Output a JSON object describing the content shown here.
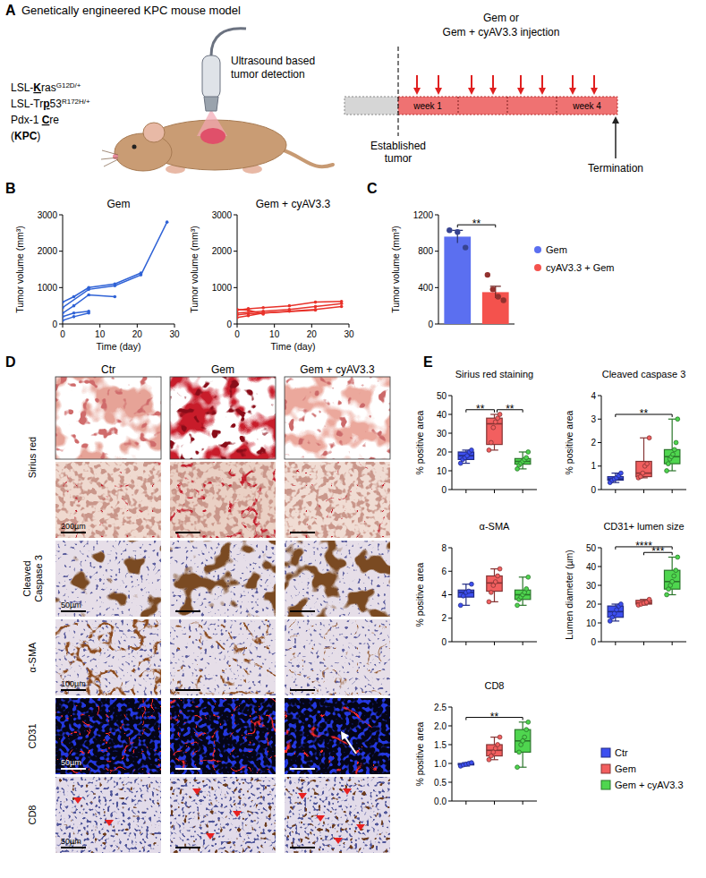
{
  "panel_letters": [
    "A",
    "B",
    "C",
    "D",
    "E"
  ],
  "panel_a": {
    "title": "Genetically engineered KPC mouse model",
    "genotype": [
      [
        {
          "t": "LSL-"
        },
        {
          "t": "K",
          "u": true
        },
        {
          "t": "ras"
        },
        {
          "t": "G12D/+",
          "sup": true
        }
      ],
      [
        {
          "t": "LSL-Tr"
        },
        {
          "t": "p",
          "u": true
        },
        {
          "t": "53"
        },
        {
          "t": "R172H/+",
          "sup": true
        }
      ],
      [
        {
          "t": "Pdx-1 "
        },
        {
          "t": "C",
          "u": true
        },
        {
          "t": "re"
        }
      ],
      [
        {
          "t": "("
        },
        {
          "t": "KPC",
          "b": true
        },
        {
          "t": ")"
        }
      ]
    ],
    "probe_label": [
      "Ultrasound based",
      "tumor detection"
    ],
    "treatment": [
      "Gem or",
      "Gem + cyAV3.3 injection"
    ],
    "weeks": [
      "week 1",
      "week 4"
    ],
    "start": [
      "Established",
      "tumor"
    ],
    "end": "Termination"
  },
  "panel_d": {
    "columns": [
      "Ctr",
      "Gem",
      "Gem + cyAV3.3"
    ],
    "rows": [
      {
        "label": "Sirius red",
        "scale": "200µm",
        "overview": true
      },
      {
        "label": "Cleaved Caspase 3",
        "scale": "50µm"
      },
      {
        "label": "α-SMA",
        "scale": "100µm"
      },
      {
        "label": "CD31",
        "scale": "50µm"
      },
      {
        "label": "CD8",
        "scale": "50µm"
      }
    ]
  },
  "legend_e": {
    "names": [
      "Ctr",
      "Gem",
      "Gem + cyAV3.3"
    ],
    "colors": [
      "#3d4ff0",
      "#f25f5f",
      "#4fd64f"
    ]
  },
  "chart_data": [
    {
      "type": "line",
      "title": "Gem",
      "x_label": "Time (day)",
      "y_label": "Tumor volume (mm³)",
      "color": "#2f62d6",
      "xlim": [
        0,
        30
      ],
      "xticks": [
        0,
        10,
        20,
        30
      ],
      "ylim": [
        0,
        3000
      ],
      "yticks": [
        0,
        1000,
        2000,
        3000
      ],
      "series": [
        {
          "x": [
            0,
            7,
            14,
            21,
            28
          ],
          "values": [
            450,
            950,
            1050,
            1350,
            2800
          ]
        },
        {
          "x": [
            0,
            3,
            7,
            14,
            21
          ],
          "values": [
            600,
            750,
            1000,
            1100,
            1400
          ]
        },
        {
          "x": [
            0,
            3,
            7,
            14
          ],
          "values": [
            300,
            500,
            800,
            750
          ]
        },
        {
          "x": [
            0,
            3,
            7
          ],
          "values": [
            200,
            300,
            350
          ]
        },
        {
          "x": [
            0,
            3,
            7
          ],
          "values": [
            100,
            200,
            300
          ]
        }
      ]
    },
    {
      "type": "line",
      "title": "Gem + cyAV3.3",
      "x_label": "Time (day)",
      "y_label": "Tumor volume (mm³)",
      "color": "#e8322a",
      "xlim": [
        0,
        30
      ],
      "xticks": [
        0,
        10,
        20,
        30
      ],
      "ylim": [
        0,
        3000
      ],
      "yticks": [
        0,
        1000,
        2000,
        3000
      ],
      "series": [
        {
          "x": [
            0,
            3,
            7,
            14,
            21,
            28
          ],
          "values": [
            380,
            420,
            450,
            500,
            600,
            620
          ]
        },
        {
          "x": [
            0,
            7,
            14,
            21,
            28
          ],
          "values": [
            300,
            350,
            400,
            480,
            560
          ]
        },
        {
          "x": [
            0,
            3,
            7,
            14,
            21,
            28
          ],
          "values": [
            250,
            280,
            300,
            350,
            400,
            480
          ]
        },
        {
          "x": [
            0,
            3,
            7,
            21
          ],
          "values": [
            180,
            230,
            300,
            380
          ]
        },
        {
          "x": [
            0,
            3,
            7
          ],
          "values": [
            400,
            380,
            270
          ]
        }
      ]
    },
    {
      "type": "bar",
      "y_label": "Tumor volume (mm³)",
      "categories": [
        null,
        null
      ],
      "values": [
        960,
        350
      ],
      "errors": [
        70,
        65
      ],
      "colors": [
        "#5b6ff0",
        "#f4524d"
      ],
      "legend_labels": [
        "Gem",
        "cyAV3.3 + Gem"
      ],
      "legend": "right",
      "tick_labels": "y",
      "points": [
        [
          1030,
          1010,
          840
        ],
        [
          540,
          380,
          300,
          260
        ]
      ],
      "ylim": [
        0,
        1200
      ],
      "yticks": [
        0,
        400,
        800,
        1200
      ],
      "annotations": [
        {
          "from": 0,
          "to": 1,
          "text": "**"
        }
      ]
    },
    {
      "type": "box",
      "title": "Sirius red staining",
      "y_label": "% positive area",
      "categories": [
        null,
        null,
        null
      ],
      "tick_labels": "y",
      "colors": [
        "#3d4ff0",
        "#f25f5f",
        "#4fd64f"
      ],
      "ylim": [
        0,
        50
      ],
      "yticks": [
        0,
        10,
        20,
        30,
        40,
        50
      ],
      "boxes": [
        {
          "min": 14,
          "q1": 16,
          "median": 18,
          "q3": 20,
          "max": 21
        },
        {
          "min": 21,
          "q1": 24,
          "median": 35,
          "q3": 38,
          "max": 40
        },
        {
          "min": 11,
          "q1": 13.5,
          "median": 15,
          "q3": 16.5,
          "max": 20
        }
      ],
      "points": [
        [
          14,
          16,
          17,
          18,
          20,
          21
        ],
        [
          21,
          25,
          33,
          36,
          38,
          40
        ],
        [
          11,
          13,
          14,
          15,
          16,
          17,
          20
        ]
      ],
      "annotations": [
        {
          "from": 0,
          "to": 1,
          "text": "**"
        },
        {
          "from": 1,
          "to": 2,
          "text": "**"
        }
      ]
    },
    {
      "type": "box",
      "title": "Cleaved caspase 3",
      "y_label": "% positive area",
      "categories": [
        null,
        null,
        null
      ],
      "tick_labels": "y",
      "colors": [
        "#3d4ff0",
        "#f25f5f",
        "#4fd64f"
      ],
      "ylim": [
        0,
        4
      ],
      "yticks": [
        0,
        1,
        2,
        3,
        4
      ],
      "boxes": [
        {
          "min": 0.3,
          "q1": 0.4,
          "median": 0.45,
          "q3": 0.55,
          "max": 0.7
        },
        {
          "min": 0.5,
          "q1": 0.55,
          "median": 0.7,
          "q3": 1.2,
          "max": 2.2
        },
        {
          "min": 0.8,
          "q1": 1.1,
          "median": 1.4,
          "q3": 1.7,
          "max": 3.0
        }
      ],
      "points": [
        [
          0.3,
          0.4,
          0.45,
          0.5,
          0.6,
          0.7
        ],
        [
          0.5,
          0.55,
          0.7,
          1.0,
          1.1,
          2.2
        ],
        [
          0.8,
          1.1,
          1.3,
          1.4,
          1.5,
          1.7,
          2.0,
          3.0
        ]
      ],
      "annotations": [
        {
          "from": 0,
          "to": 2,
          "text": "**"
        }
      ]
    },
    {
      "type": "box",
      "title": "α-SMA",
      "y_label": "% positive area",
      "categories": [
        null,
        null,
        null
      ],
      "tick_labels": "y",
      "colors": [
        "#3d4ff0",
        "#f25f5f",
        "#4fd64f"
      ],
      "ylim": [
        0,
        8
      ],
      "yticks": [
        0,
        2,
        4,
        6,
        8
      ],
      "boxes": [
        {
          "min": 3.1,
          "q1": 3.8,
          "median": 4.2,
          "q3": 4.4,
          "max": 4.9
        },
        {
          "min": 3.4,
          "q1": 4.3,
          "median": 5.0,
          "q3": 5.6,
          "max": 6.2
        },
        {
          "min": 3.1,
          "q1": 3.6,
          "median": 4.0,
          "q3": 4.4,
          "max": 5.5
        }
      ],
      "points": [
        [
          3.1,
          3.9,
          4.2,
          4.3,
          4.9
        ],
        [
          3.4,
          4.2,
          4.8,
          5.1,
          5.6,
          6.2
        ],
        [
          3.1,
          3.6,
          3.8,
          4.0,
          4.2,
          4.5,
          5.5
        ]
      ],
      "annotations": []
    },
    {
      "type": "box",
      "title": "CD31+ lumen size",
      "y_label": "Lumen diameter (µm)",
      "categories": [
        null,
        null,
        null
      ],
      "tick_labels": "y",
      "colors": [
        "#3d4ff0",
        "#f25f5f",
        "#4fd64f"
      ],
      "ylim": [
        0,
        50
      ],
      "yticks": [
        0,
        10,
        20,
        30,
        40,
        50
      ],
      "boxes": [
        {
          "min": 11,
          "q1": 13,
          "median": 16,
          "q3": 19,
          "max": 20
        },
        {
          "min": 19.5,
          "q1": 20,
          "median": 20.5,
          "q3": 22,
          "max": 22.5
        },
        {
          "min": 25,
          "q1": 28,
          "median": 32,
          "q3": 38,
          "max": 45
        }
      ],
      "points": [
        [
          11,
          13,
          15,
          17,
          19,
          20
        ],
        [
          19.5,
          20,
          20.5,
          21,
          22.5
        ],
        [
          25,
          28,
          30,
          32,
          35,
          38,
          45
        ]
      ],
      "annotations": [
        {
          "from": 1,
          "to": 2,
          "text": "***"
        },
        {
          "from": 0,
          "to": 2,
          "text": "****"
        }
      ]
    },
    {
      "type": "box",
      "title": "CD8",
      "y_label": "% positive area",
      "categories": [
        null,
        null,
        null
      ],
      "tick_labels": "y",
      "colors": [
        "#3d4ff0",
        "#f25f5f",
        "#4fd64f"
      ],
      "ylim": [
        0,
        2.5
      ],
      "yticks": [
        {
          "value": 0,
          "label": "0.0"
        },
        0.5,
        {
          "value": 1,
          "label": "1.0"
        },
        1.5,
        {
          "value": 2,
          "label": "2.0"
        },
        2.5
      ],
      "boxes": [
        {
          "min": 0.93,
          "q1": 0.96,
          "median": 0.98,
          "q3": 1.0,
          "max": 1.02
        },
        {
          "min": 1.1,
          "q1": 1.2,
          "median": 1.35,
          "q3": 1.5,
          "max": 1.7
        },
        {
          "min": 0.9,
          "q1": 1.3,
          "median": 1.6,
          "q3": 1.9,
          "max": 2.1
        }
      ],
      "points": [
        [
          0.93,
          0.96,
          0.98,
          1.0,
          1.02
        ],
        [
          1.1,
          1.2,
          1.3,
          1.4,
          1.5,
          1.7
        ],
        [
          0.9,
          1.3,
          1.5,
          1.6,
          1.7,
          1.9,
          2.1
        ]
      ],
      "annotations": [
        {
          "from": 0,
          "to": 2,
          "text": "**"
        }
      ]
    }
  ]
}
